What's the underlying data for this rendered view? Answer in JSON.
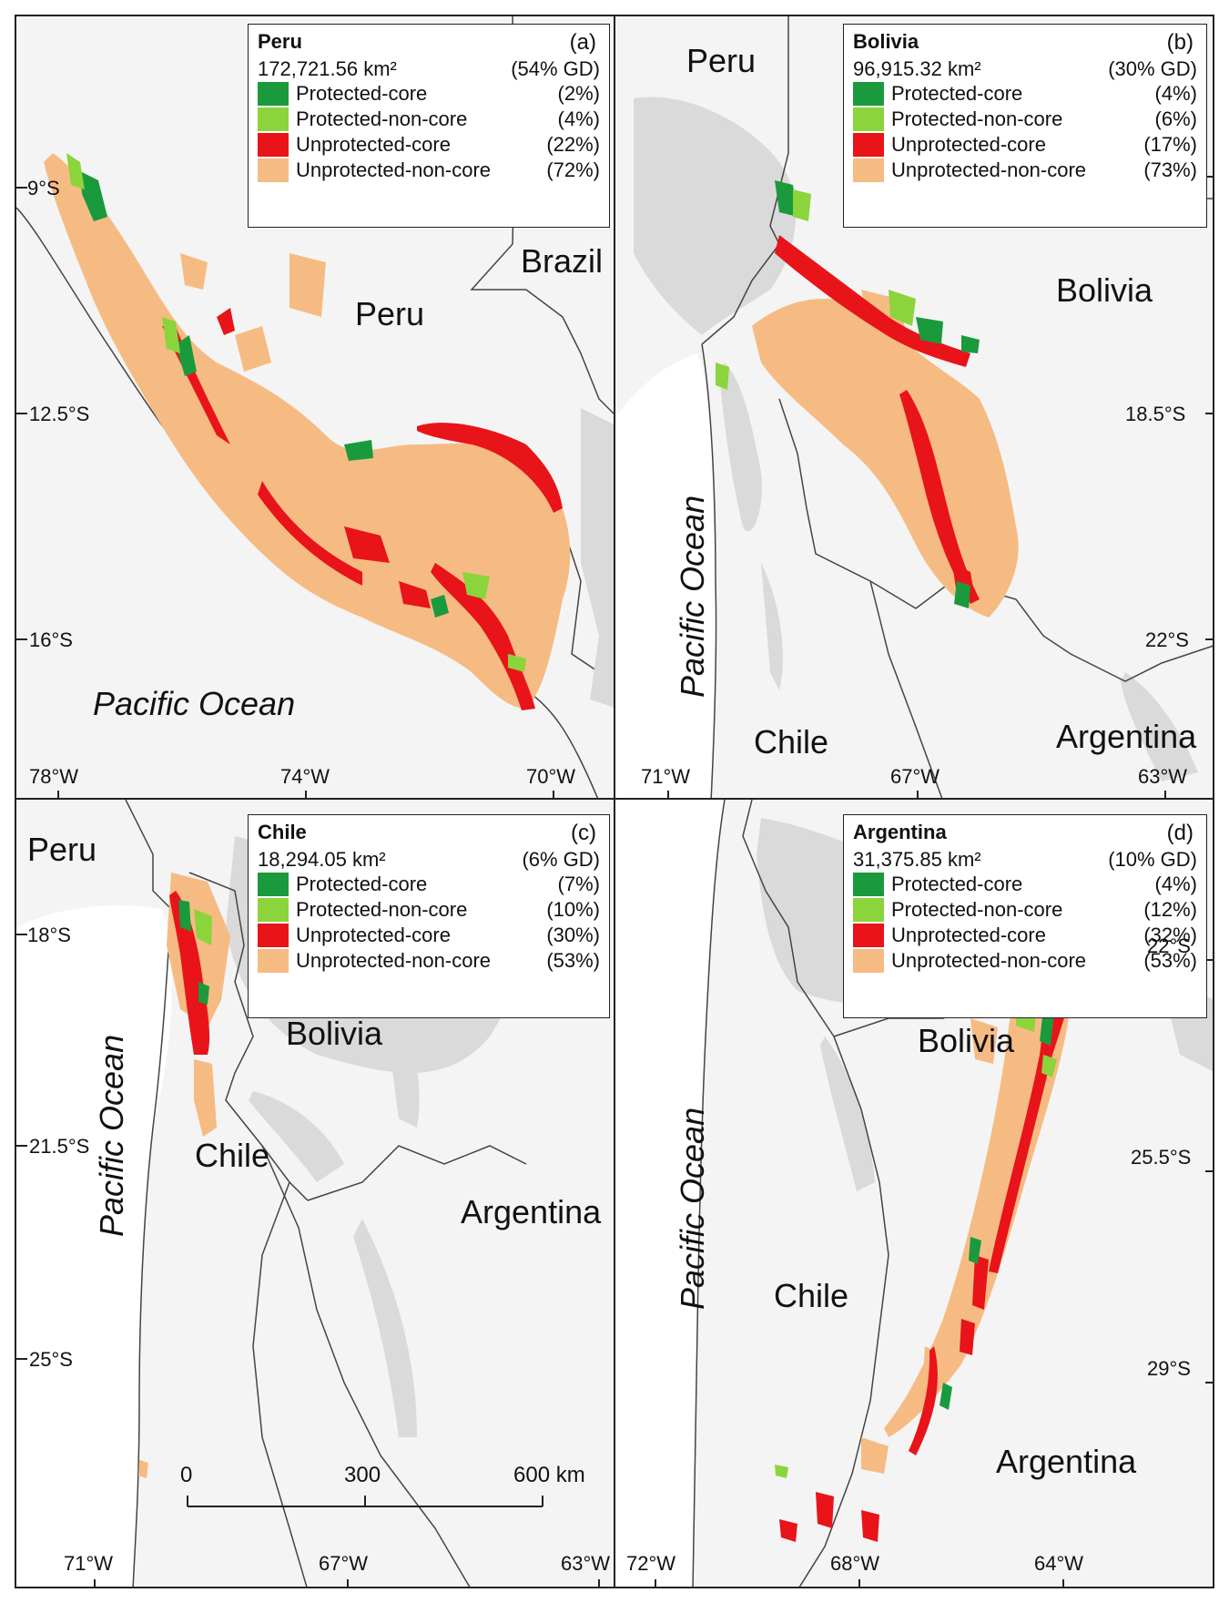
{
  "colors": {
    "protected_core": "#1a9a3c",
    "protected_non_core": "#8cd43c",
    "unprotected_core": "#e8141a",
    "unprotected_non_core": "#f6bb83",
    "land": "#f4f4f4",
    "highland": "#dadada",
    "border": "#333333"
  },
  "panels": [
    {
      "id": "a",
      "legend": {
        "title": "Peru",
        "letter": "(a)",
        "area": "172,721.56 km²",
        "gd": "(54% GD)",
        "rows": [
          {
            "name": "Protected-core",
            "pct": "(2%)",
            "color": "protected_core"
          },
          {
            "name": "Protected-non-core",
            "pct": "(4%)",
            "color": "protected_non_core"
          },
          {
            "name": "Unprotected-core",
            "pct": "(22%)",
            "color": "unprotected_core"
          },
          {
            "name": "Unprotected-non-core",
            "pct": "(72%)",
            "color": "unprotected_non_core"
          }
        ]
      },
      "countries": [
        "Brazil",
        "Peru"
      ],
      "ocean": "Pacific Ocean",
      "lat_ticks": [
        "9°S",
        "12.5°S",
        "16°S"
      ],
      "lon_ticks": [
        "78°W",
        "74°W",
        "70°W"
      ]
    },
    {
      "id": "b",
      "legend": {
        "title": "Bolivia",
        "letter": "(b)",
        "area": "96,915.32 km²",
        "gd": "(30% GD)",
        "rows": [
          {
            "name": "Protected-core",
            "pct": "(4%)",
            "color": "protected_core"
          },
          {
            "name": "Protected-non-core",
            "pct": "(6%)",
            "color": "protected_non_core"
          },
          {
            "name": "Unprotected-core",
            "pct": "(17%)",
            "color": "unprotected_core"
          },
          {
            "name": "Unprotected-non-core",
            "pct": "(73%)",
            "color": "unprotected_non_core"
          }
        ]
      },
      "countries": [
        "Peru",
        "Bolivia",
        "Chile",
        "Argentina"
      ],
      "ocean": "Pacific Ocean",
      "lat_ticks": [
        "18.5°S",
        "22°S"
      ],
      "lon_ticks": [
        "71°W",
        "67°W",
        "63°W"
      ]
    },
    {
      "id": "c",
      "legend": {
        "title": "Chile",
        "letter": "(c)",
        "area": "18,294.05 km²",
        "gd": "(6% GD)",
        "rows": [
          {
            "name": "Protected-core",
            "pct": "(7%)",
            "color": "protected_core"
          },
          {
            "name": "Protected-non-core",
            "pct": "(10%)",
            "color": "protected_non_core"
          },
          {
            "name": "Unprotected-core",
            "pct": "(30%)",
            "color": "unprotected_core"
          },
          {
            "name": "Unprotected-non-core",
            "pct": "(53%)",
            "color": "unprotected_non_core"
          }
        ]
      },
      "countries": [
        "Peru",
        "Bolivia",
        "Chile",
        "Argentina"
      ],
      "ocean": "Pacific Ocean",
      "lat_ticks": [
        "18°S",
        "21.5°S",
        "25°S"
      ],
      "lon_ticks": [
        "71°W",
        "67°W",
        "63°W"
      ],
      "scale_bar": {
        "labels": [
          "0",
          "300",
          "600 km"
        ]
      }
    },
    {
      "id": "d",
      "legend": {
        "title": "Argentina",
        "letter": "(d)",
        "area": "31,375.85 km²",
        "gd": "(10% GD)",
        "rows": [
          {
            "name": "Protected-core",
            "pct": "(4%)",
            "color": "protected_core"
          },
          {
            "name": "Protected-non-core",
            "pct": "(12%)",
            "color": "protected_non_core"
          },
          {
            "name": "Unprotected-core",
            "pct": "(32%)",
            "color": "unprotected_core"
          },
          {
            "name": "Unprotected-non-core",
            "pct": "(53%)",
            "color": "unprotected_non_core"
          }
        ]
      },
      "countries": [
        "Bolivia",
        "Chile",
        "Argentina"
      ],
      "ocean": "Pacific Ocean",
      "lat_ticks": [
        "22°S",
        "25.5°S",
        "29°S"
      ],
      "lon_ticks": [
        "72°W",
        "68°W",
        "64°W"
      ]
    }
  ]
}
